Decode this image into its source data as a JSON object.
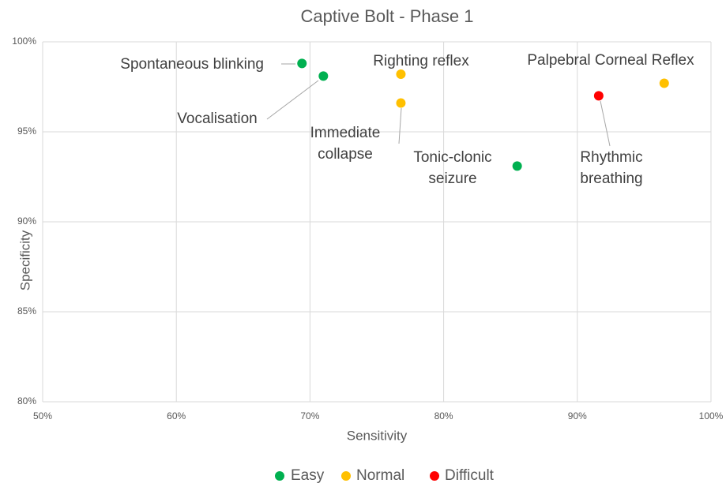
{
  "chart_data": {
    "type": "scatter",
    "title": "Captive Bolt - Phase 1",
    "x_label": "Sensitivity",
    "y_label": "Specificity",
    "xlim": [
      50,
      100
    ],
    "ylim": [
      80,
      100
    ],
    "xticks": [
      {
        "value": 50,
        "label": "50%"
      },
      {
        "value": 60,
        "label": "60%"
      },
      {
        "value": 70,
        "label": "70%"
      },
      {
        "value": 80,
        "label": "80%"
      },
      {
        "value": 90,
        "label": "90%"
      },
      {
        "value": 100,
        "label": "100%"
      }
    ],
    "yticks": [
      {
        "value": 80,
        "label": "80%"
      },
      {
        "value": 85,
        "label": "85%"
      },
      {
        "value": 90,
        "label": "90%"
      },
      {
        "value": 95,
        "label": "95%"
      },
      {
        "value": 100,
        "label": "100%"
      }
    ],
    "grid": true,
    "legend": "bottom",
    "series": [
      {
        "name": "Easy",
        "color": "#00b050",
        "x": [
          69.4,
          71.0,
          85.5
        ],
        "values": [
          98.8,
          98.1,
          93.1
        ],
        "labels": [
          "Spontaneous blinking",
          "Vocalisation",
          "Tonic-clonic seizure"
        ]
      },
      {
        "name": "Normal",
        "color": "#ffc000",
        "x": [
          76.8,
          76.8,
          96.5
        ],
        "values": [
          98.2,
          96.6,
          97.7
        ],
        "labels": [
          "Righting reflex",
          "Immediate collapse",
          "Palpebral Corneal Reflex"
        ]
      },
      {
        "name": "Difficult",
        "color": "#ff0000",
        "x": [
          91.6
        ],
        "values": [
          97.0
        ],
        "labels": [
          "Rhythmic breathing"
        ]
      }
    ]
  }
}
